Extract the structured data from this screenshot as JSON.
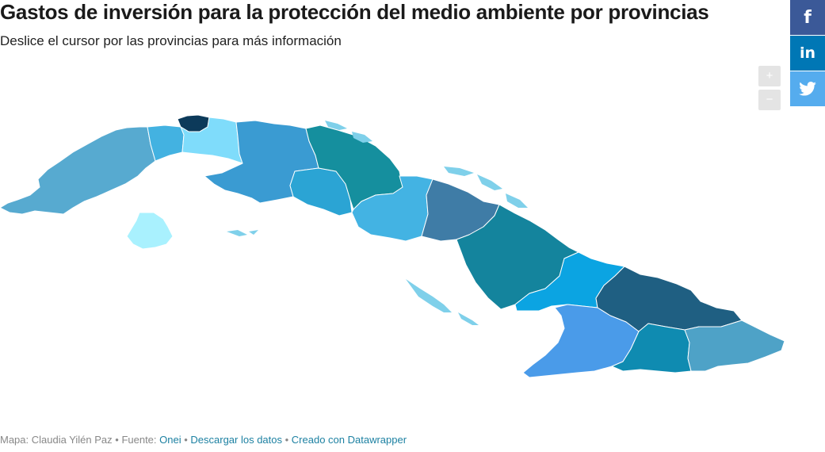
{
  "header": {
    "title": "Gastos de inversión para la protección del medio ambiente por provincias",
    "subtitle": "Deslice el cursor por las provincias para más información"
  },
  "share": {
    "facebook": "f",
    "linkedin": "in",
    "twitter": "🐦"
  },
  "zoom": {
    "in": "+",
    "out": "−"
  },
  "map": {
    "colors": {
      "pinar_del_rio": "#57aad0",
      "artemisa": "#43b2e1",
      "la_habana": "#0c3a5a",
      "mayabeque": "#7fdcfb",
      "isla_de_la_juventud": "#a9f1fe",
      "matanzas": "#3a9bd2",
      "cienfuegos": "#2ba4d4",
      "villa_clara": "#158f9e",
      "sancti_spiritus": "#43b3e3",
      "ciego_de_avila": "#3f7ca6",
      "camaguey": "#14849d",
      "las_tunas": "#0ba4e2",
      "holguin": "#1f5f82",
      "granma": "#4a9be9",
      "santiago_de_cuba": "#0f8bb1",
      "guantanamo": "#4ea2c7"
    }
  },
  "footer": {
    "author": "Mapa: Claudia Yilén Paz",
    "sep": " • ",
    "source_label": "Fuente: ",
    "source_link": "Onei",
    "download": "Descargar los datos",
    "created": "Creado con Datawrapper"
  }
}
